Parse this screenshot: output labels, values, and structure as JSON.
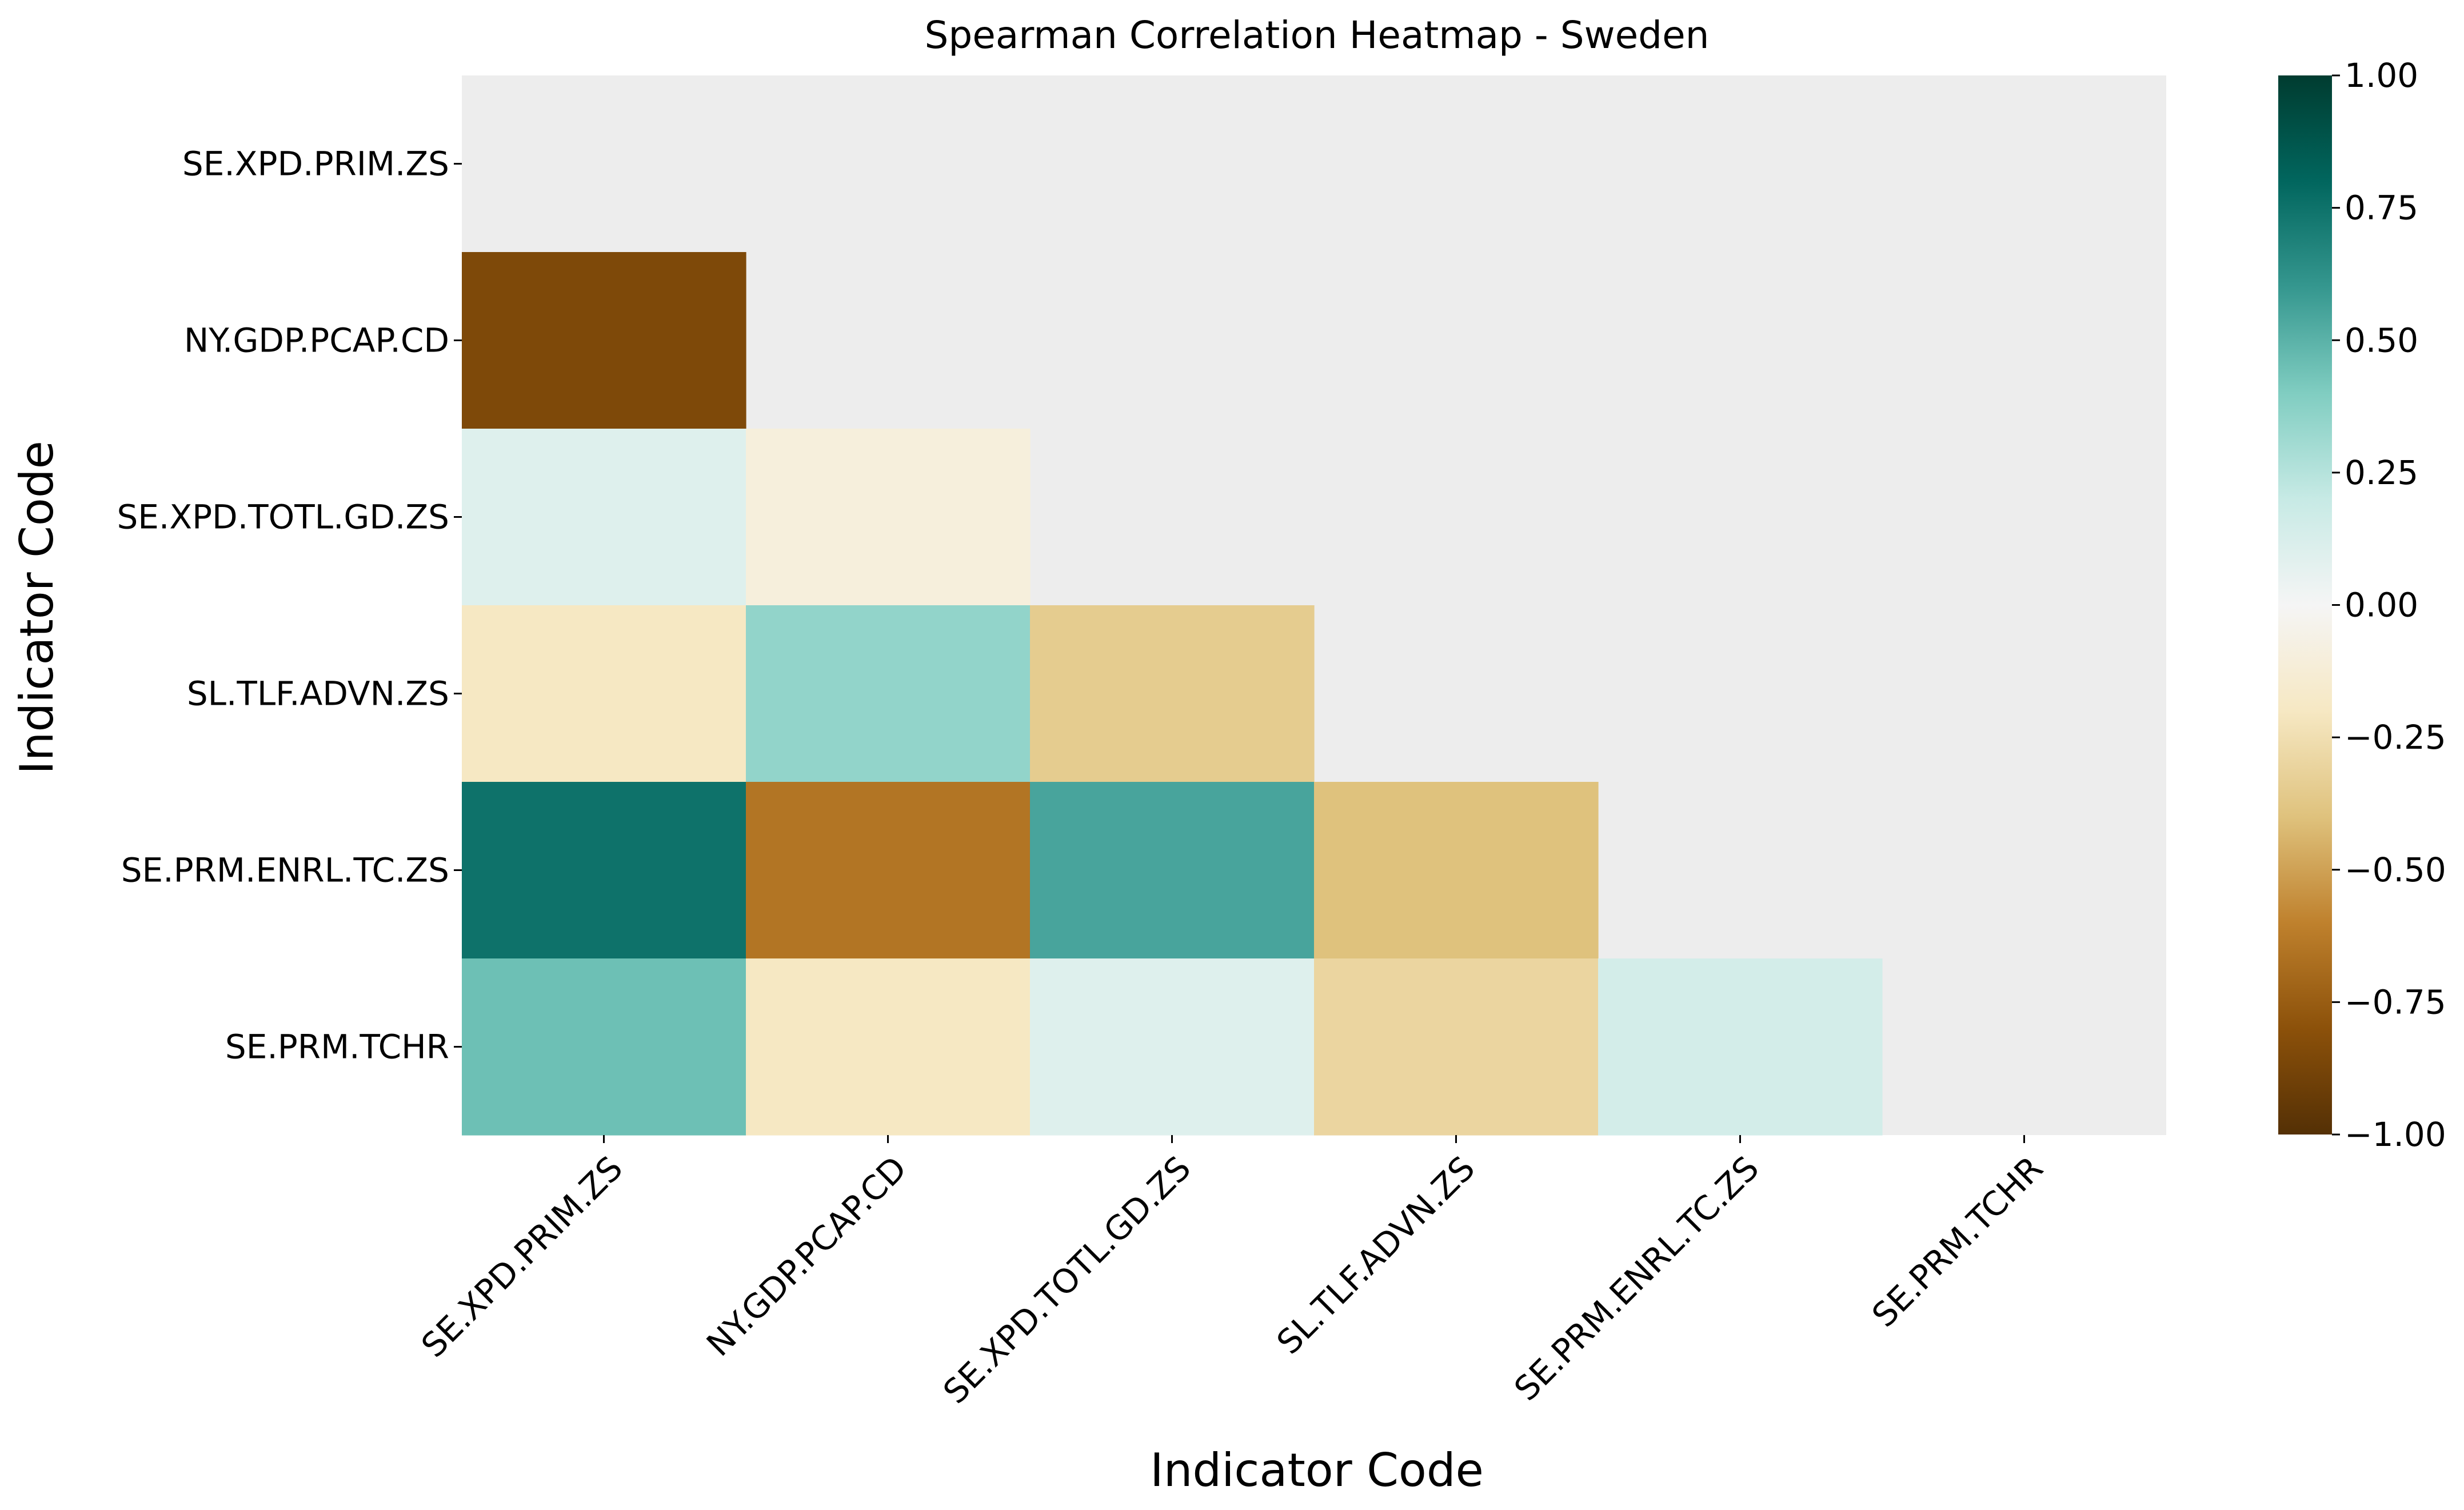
{
  "chart_data": {
    "type": "heatmap",
    "title": "Spearman Correlation Heatmap - Sweden",
    "xlabel": "Indicator Code",
    "ylabel": "Indicator Code",
    "x_categories": [
      "SE.XPD.PRIM.ZS",
      "NY.GDP.PCAP.CD",
      "SE.XPD.TOTL.GD.ZS",
      "SL.TLF.ADVN.ZS",
      "SE.PRM.ENRL.TC.ZS",
      "SE.PRM.TCHR"
    ],
    "y_categories": [
      "SE.XPD.PRIM.ZS",
      "NY.GDP.PCAP.CD",
      "SE.XPD.TOTL.GD.ZS",
      "SL.TLF.ADVN.ZS",
      "SE.PRM.ENRL.TC.ZS",
      "SE.PRM.TCHR"
    ],
    "mask": "upper triangle including diagonal",
    "values": [
      [
        null,
        null,
        null,
        null,
        null,
        null
      ],
      [
        -0.85,
        null,
        null,
        null,
        null,
        null
      ],
      [
        0.1,
        -0.1,
        null,
        null,
        null,
        null
      ],
      [
        -0.2,
        0.35,
        -0.35,
        null,
        null,
        null
      ],
      [
        0.75,
        -0.65,
        0.55,
        -0.4,
        null,
        null
      ],
      [
        0.45,
        -0.2,
        0.1,
        -0.3,
        0.15,
        null
      ]
    ],
    "colormap": "BrBG",
    "colorbar": {
      "range": [
        -1.0,
        1.0
      ],
      "ticks": [
        "1.00",
        "0.75",
        "0.50",
        "0.25",
        "0.00",
        "−0.25",
        "−0.50",
        "−0.75",
        "−1.00"
      ]
    },
    "masked_color": "#ededed"
  }
}
